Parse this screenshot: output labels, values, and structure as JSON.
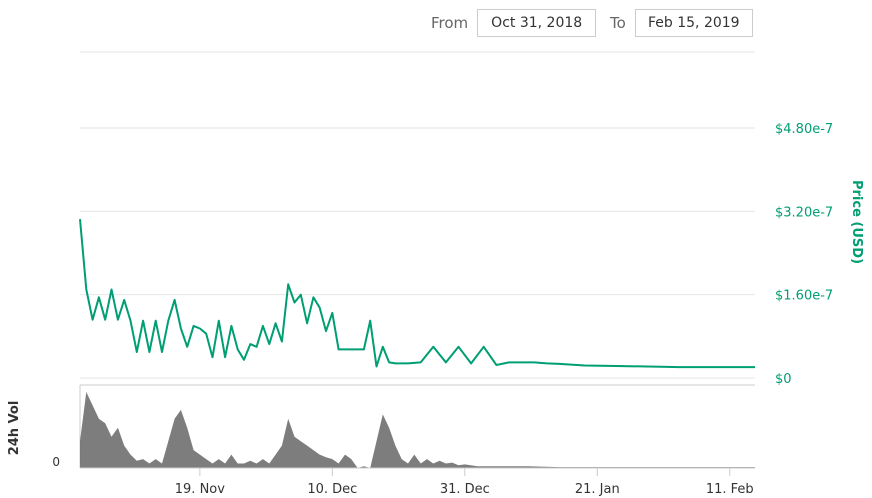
{
  "range_selector": {
    "from_label": "From",
    "from_value": "Oct 31, 2018",
    "to_label": "To",
    "to_value": "Feb 15, 2019"
  },
  "chart_data": {
    "type": "line",
    "colors": {
      "price": "#009e73",
      "volume": "#666666",
      "grid": "#e6e6e6"
    },
    "x_range": [
      "2018-10-31",
      "2019-02-15"
    ],
    "x_ticks": [
      "19. Nov",
      "10. Dec",
      "31. Dec",
      "21. Jan",
      "11. Feb"
    ],
    "price_axis": {
      "title": "Price (USD)",
      "ylim": [
        0,
        4.8e-07
      ],
      "ticks": [
        0,
        1.6e-07,
        3.2e-07,
        4.8e-07
      ],
      "tick_labels": [
        "$0",
        "$1.60e-7",
        "$3.20e-7",
        "$4.80e-7"
      ]
    },
    "volume_axis": {
      "title": "24h Vol",
      "tick_labels": [
        "0"
      ]
    },
    "series": [
      {
        "name": "Price (USD)",
        "x": [
          "2018-10-31",
          "2018-11-01",
          "2018-11-02",
          "2018-11-03",
          "2018-11-04",
          "2018-11-05",
          "2018-11-06",
          "2018-11-07",
          "2018-11-08",
          "2018-11-09",
          "2018-11-10",
          "2018-11-11",
          "2018-11-12",
          "2018-11-13",
          "2018-11-14",
          "2018-11-15",
          "2018-11-16",
          "2018-11-17",
          "2018-11-18",
          "2018-11-19",
          "2018-11-20",
          "2018-11-21",
          "2018-11-22",
          "2018-11-23",
          "2018-11-24",
          "2018-11-25",
          "2018-11-26",
          "2018-11-27",
          "2018-11-28",
          "2018-11-29",
          "2018-11-30",
          "2018-12-01",
          "2018-12-02",
          "2018-12-03",
          "2018-12-04",
          "2018-12-05",
          "2018-12-06",
          "2018-12-07",
          "2018-12-08",
          "2018-12-09",
          "2018-12-10",
          "2018-12-11",
          "2018-12-12",
          "2018-12-13",
          "2018-12-14",
          "2018-12-15",
          "2018-12-16",
          "2018-12-17",
          "2018-12-18",
          "2018-12-19",
          "2018-12-20",
          "2018-12-22",
          "2018-12-24",
          "2018-12-26",
          "2018-12-28",
          "2018-12-30",
          "2019-01-01",
          "2019-01-03",
          "2019-01-05",
          "2019-01-07",
          "2019-01-09",
          "2019-01-11",
          "2019-01-13",
          "2019-01-15",
          "2019-01-19",
          "2019-01-24",
          "2019-01-29",
          "2019-02-03",
          "2019-02-08",
          "2019-02-15"
        ],
        "values": [
          3.05e-07,
          1.7e-07,
          1.12e-07,
          1.55e-07,
          1.12e-07,
          1.7e-07,
          1.12e-07,
          1.5e-07,
          1.1e-07,
          5e-08,
          1.1e-07,
          5e-08,
          1.1e-07,
          5e-08,
          1.1e-07,
          1.5e-07,
          9.5e-08,
          6e-08,
          1e-07,
          9.5e-08,
          8.5e-08,
          4e-08,
          1.1e-07,
          4e-08,
          1e-07,
          5.5e-08,
          3.5e-08,
          6.5e-08,
          6e-08,
          1e-07,
          6.5e-08,
          1.05e-07,
          7e-08,
          1.8e-07,
          1.45e-07,
          1.6e-07,
          1.05e-07,
          1.55e-07,
          1.35e-07,
          9e-08,
          1.25e-07,
          5.5e-08,
          5.5e-08,
          5.5e-08,
          5.5e-08,
          5.5e-08,
          1.1e-07,
          2.2e-08,
          6e-08,
          3e-08,
          2.8e-08,
          2.8e-08,
          3e-08,
          6e-08,
          3e-08,
          6e-08,
          2.8e-08,
          6e-08,
          2.5e-08,
          3e-08,
          3e-08,
          3e-08,
          2.8e-08,
          2.7e-08,
          2.4e-08,
          2.3e-08,
          2.2e-08,
          2.1e-08,
          2.1e-08,
          2.1e-08
        ]
      },
      {
        "name": "24h Vol",
        "type": "area",
        "x": [
          "2018-10-31",
          "2018-11-01",
          "2018-11-02",
          "2018-11-03",
          "2018-11-04",
          "2018-11-05",
          "2018-11-06",
          "2018-11-07",
          "2018-11-08",
          "2018-11-09",
          "2018-11-10",
          "2018-11-11",
          "2018-11-12",
          "2018-11-13",
          "2018-11-14",
          "2018-11-15",
          "2018-11-16",
          "2018-11-17",
          "2018-11-18",
          "2018-11-19",
          "2018-11-20",
          "2018-11-21",
          "2018-11-22",
          "2018-11-23",
          "2018-11-24",
          "2018-11-25",
          "2018-11-26",
          "2018-11-27",
          "2018-11-28",
          "2018-11-29",
          "2018-11-30",
          "2018-12-01",
          "2018-12-02",
          "2018-12-03",
          "2018-12-04",
          "2018-12-05",
          "2018-12-06",
          "2018-12-07",
          "2018-12-08",
          "2018-12-09",
          "2018-12-10",
          "2018-12-11",
          "2018-12-12",
          "2018-12-13",
          "2018-12-14",
          "2018-12-15",
          "2018-12-16",
          "2018-12-17",
          "2018-12-18",
          "2018-12-19",
          "2018-12-20",
          "2018-12-21",
          "2018-12-22",
          "2018-12-23",
          "2018-12-24",
          "2018-12-25",
          "2018-12-26",
          "2018-12-27",
          "2018-12-28",
          "2018-12-29",
          "2018-12-30",
          "2018-12-31",
          "2019-01-02",
          "2019-01-05",
          "2019-01-10",
          "2019-01-15",
          "2019-01-20",
          "2019-01-25",
          "2019-01-30",
          "2019-02-05",
          "2019-02-10",
          "2019-02-15"
        ],
        "values": [
          0.3,
          0.85,
          0.7,
          0.55,
          0.5,
          0.35,
          0.45,
          0.25,
          0.15,
          0.08,
          0.1,
          0.05,
          0.1,
          0.05,
          0.3,
          0.55,
          0.65,
          0.45,
          0.2,
          0.15,
          0.1,
          0.05,
          0.1,
          0.05,
          0.15,
          0.05,
          0.05,
          0.08,
          0.05,
          0.1,
          0.05,
          0.15,
          0.25,
          0.55,
          0.35,
          0.3,
          0.25,
          0.2,
          0.15,
          0.12,
          0.1,
          0.05,
          0.15,
          0.1,
          0.0,
          0.02,
          0.0,
          0.3,
          0.6,
          0.45,
          0.25,
          0.1,
          0.05,
          0.15,
          0.05,
          0.1,
          0.05,
          0.08,
          0.05,
          0.06,
          0.03,
          0.04,
          0.02,
          0.02,
          0.02,
          0.01,
          0.01,
          0.01,
          0.01,
          0.01,
          0.01,
          0.01
        ]
      }
    ]
  }
}
